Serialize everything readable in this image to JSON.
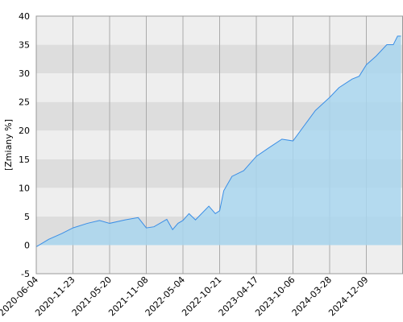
{
  "chart_data": {
    "type": "area",
    "ylabel": "[Zmiany %]",
    "ylim": [
      -5,
      40
    ],
    "yticks": [
      -5,
      0,
      5,
      10,
      15,
      20,
      25,
      30,
      35,
      40
    ],
    "xticks": [
      "2020-06-04",
      "2020-11-23",
      "2021-05-20",
      "2021-11-08",
      "2022-05-04",
      "2022-10-21",
      "2023-04-17",
      "2023-10-06",
      "2024-03-28",
      "2024-12-09"
    ],
    "grid": true,
    "band_colors": [
      "#eeeeee",
      "#dddddd"
    ],
    "series": [
      {
        "color": "#3a8ee6",
        "fill": "#a9d6ee",
        "x": [
          "2020-06-04",
          "2020-08-01",
          "2020-10-01",
          "2020-11-23",
          "2021-02-01",
          "2021-04-01",
          "2021-05-20",
          "2021-08-01",
          "2021-10-01",
          "2021-11-08",
          "2021-12-15",
          "2022-02-15",
          "2022-03-15",
          "2022-04-10",
          "2022-05-04",
          "2022-06-01",
          "2022-07-01",
          "2022-09-01",
          "2022-10-01",
          "2022-10-21",
          "2022-11-10",
          "2022-12-20",
          "2023-02-15",
          "2023-04-17",
          "2023-06-15",
          "2023-08-15",
          "2023-10-06",
          "2023-12-01",
          "2024-01-20",
          "2024-03-28",
          "2024-06-01",
          "2024-09-01",
          "2024-10-20",
          "2024-12-09",
          "2025-02-15",
          "2025-05-01",
          "2025-06-15",
          "2025-07-15",
          "2025-08-08"
        ],
        "values": [
          -0.3,
          1.0,
          2.0,
          3.0,
          3.8,
          4.3,
          3.8,
          4.4,
          4.8,
          3.0,
          3.2,
          4.5,
          2.7,
          3.8,
          4.3,
          5.5,
          4.4,
          6.8,
          5.5,
          6.0,
          9.5,
          12.0,
          13.0,
          15.5,
          17.0,
          18.5,
          18.2,
          21.0,
          23.5,
          25.8,
          27.5,
          29.0,
          29.5,
          31.5,
          33.0,
          35.0,
          35.0,
          36.5,
          36.5
        ]
      }
    ]
  }
}
